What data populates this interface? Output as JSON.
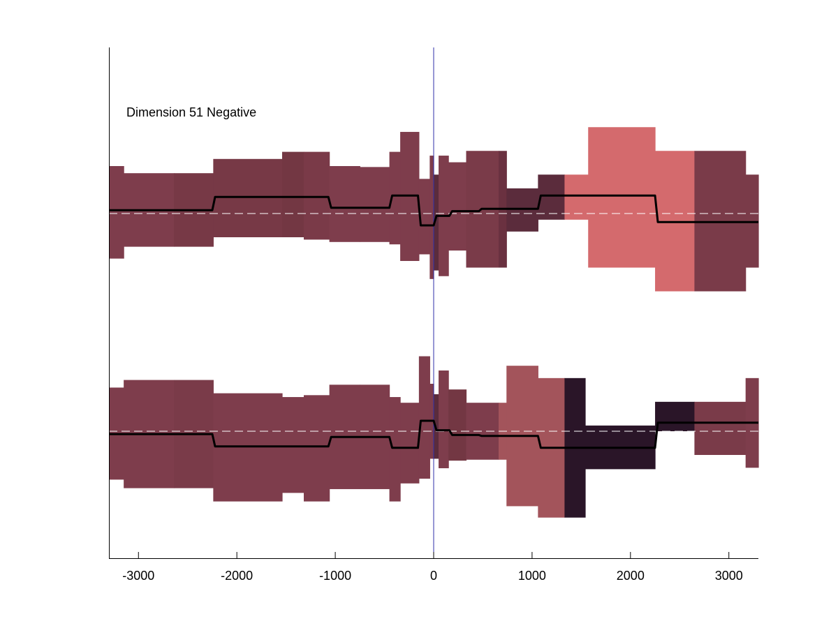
{
  "chart_data": {
    "type": "area",
    "title": "",
    "annotation": "Dimension 51 Negative",
    "xlabel": "",
    "ylabel": "",
    "xlim": [
      -3300,
      3300
    ],
    "x_ticks": [
      -3000,
      -2000,
      -1000,
      0,
      1000,
      2000,
      3000
    ],
    "x_tick_labels": [
      "-3000",
      "-2000",
      "-1000",
      "0",
      "1000",
      "2000",
      "3000"
    ],
    "grid": false,
    "legend": "none",
    "zero_line_x": 0,
    "colors": {
      "zero_line": "#2f2fa8",
      "mean_line": "#000000",
      "baseline": "#ffffff"
    },
    "panels": [
      {
        "name": "upper",
        "ylim": [
          -1.6,
          1.6
        ],
        "baseline": 0,
        "bands": [
          {
            "x0": -3300,
            "x1": -3150,
            "lo": -0.95,
            "hi": 1.0,
            "color": "#7e3d4c"
          },
          {
            "x0": -3150,
            "x1": -2640,
            "lo": -0.7,
            "hi": 0.85,
            "color": "#7e3d4c"
          },
          {
            "x0": -2640,
            "x1": -2240,
            "lo": -0.7,
            "hi": 0.85,
            "color": "#773946"
          },
          {
            "x0": -2240,
            "x1": -1540,
            "lo": -0.5,
            "hi": 1.15,
            "color": "#773946"
          },
          {
            "x0": -1540,
            "x1": -1320,
            "lo": -0.5,
            "hi": 1.3,
            "color": "#733743"
          },
          {
            "x0": -1320,
            "x1": -1060,
            "lo": -0.55,
            "hi": 1.3,
            "color": "#7a3a48"
          },
          {
            "x0": -1060,
            "x1": -750,
            "lo": -0.6,
            "hi": 1.0,
            "color": "#7e3d4c"
          },
          {
            "x0": -750,
            "x1": -450,
            "lo": -0.6,
            "hi": 0.98,
            "color": "#7e3d4c"
          },
          {
            "x0": -450,
            "x1": -340,
            "lo": -0.65,
            "hi": 1.3,
            "color": "#7e3d4c"
          },
          {
            "x0": -340,
            "x1": -150,
            "lo": -1.0,
            "hi": 1.72,
            "color": "#7e3d4c"
          },
          {
            "x0": -150,
            "x1": -40,
            "lo": -0.86,
            "hi": 0.73,
            "color": "#7e3d4c"
          },
          {
            "x0": -40,
            "x1": 0,
            "lo": -1.38,
            "hi": 1.22,
            "color": "#7e3d4c"
          },
          {
            "x0": 0,
            "x1": 50,
            "lo": -1.2,
            "hi": 0.82,
            "color": "#5b2c3c"
          },
          {
            "x0": 50,
            "x1": 150,
            "lo": -1.32,
            "hi": 1.22,
            "color": "#7e3d4c"
          },
          {
            "x0": 150,
            "x1": 330,
            "lo": -0.78,
            "hi": 1.08,
            "color": "#7e3d4c"
          },
          {
            "x0": 330,
            "x1": 660,
            "lo": -1.14,
            "hi": 1.32,
            "color": "#7a3b49"
          },
          {
            "x0": 660,
            "x1": 740,
            "lo": -1.14,
            "hi": 1.32,
            "color": "#6a3140"
          },
          {
            "x0": 740,
            "x1": 1060,
            "lo": -0.38,
            "hi": 0.53,
            "color": "#5b2c3c"
          },
          {
            "x0": 1060,
            "x1": 1330,
            "lo": -0.13,
            "hi": 0.82,
            "color": "#5b2c3c"
          },
          {
            "x0": 1330,
            "x1": 1570,
            "lo": -0.13,
            "hi": 0.82,
            "color": "#d46a6d"
          },
          {
            "x0": 1570,
            "x1": 2250,
            "lo": -1.14,
            "hi": 1.82,
            "color": "#d46a6d"
          },
          {
            "x0": 2250,
            "x1": 2650,
            "lo": -1.64,
            "hi": 1.32,
            "color": "#d46a6d"
          },
          {
            "x0": 2650,
            "x1": 3170,
            "lo": -1.64,
            "hi": 1.32,
            "color": "#7a3b49"
          },
          {
            "x0": 3170,
            "x1": 3300,
            "lo": -1.14,
            "hi": 0.82,
            "color": "#7a3b49"
          }
        ],
        "mean_steps": [
          {
            "x0": -3300,
            "x1": -2250,
            "y": 0.07
          },
          {
            "x0": -2250,
            "x1": -1070,
            "y": 0.35
          },
          {
            "x0": -1070,
            "x1": -450,
            "y": 0.12
          },
          {
            "x0": -450,
            "x1": -160,
            "y": 0.38
          },
          {
            "x0": -160,
            "x1": 0,
            "y": -0.25
          },
          {
            "x0": 0,
            "x1": 160,
            "y": -0.05
          },
          {
            "x0": 160,
            "x1": 460,
            "y": 0.05
          },
          {
            "x0": 460,
            "x1": 1060,
            "y": 0.1
          },
          {
            "x0": 1060,
            "x1": 2250,
            "y": 0.38
          },
          {
            "x0": 2250,
            "x1": 3300,
            "y": -0.18
          }
        ]
      },
      {
        "name": "lower",
        "ylim": [
          -1.6,
          1.6
        ],
        "baseline": 0,
        "bands": [
          {
            "x0": -3300,
            "x1": -3150,
            "lo": -1.02,
            "hi": 0.92,
            "color": "#7e3d4c"
          },
          {
            "x0": -3150,
            "x1": -2640,
            "lo": -1.2,
            "hi": 1.08,
            "color": "#7e3d4c"
          },
          {
            "x0": -2640,
            "x1": -2240,
            "lo": -1.2,
            "hi": 1.08,
            "color": "#7a3b49"
          },
          {
            "x0": -2240,
            "x1": -1540,
            "lo": -1.48,
            "hi": 0.8,
            "color": "#7e3d4c"
          },
          {
            "x0": -1540,
            "x1": -1320,
            "lo": -1.3,
            "hi": 0.72,
            "color": "#7e3d4c"
          },
          {
            "x0": -1320,
            "x1": -1060,
            "lo": -1.48,
            "hi": 0.76,
            "color": "#7e3d4c"
          },
          {
            "x0": -1060,
            "x1": -750,
            "lo": -1.22,
            "hi": 0.98,
            "color": "#7e3d4c"
          },
          {
            "x0": -750,
            "x1": -450,
            "lo": -1.22,
            "hi": 0.98,
            "color": "#7e3d4c"
          },
          {
            "x0": -450,
            "x1": -340,
            "lo": -1.48,
            "hi": 0.72,
            "color": "#7e3d4c"
          },
          {
            "x0": -340,
            "x1": -150,
            "lo": -1.1,
            "hi": 0.6,
            "color": "#7e3d4c"
          },
          {
            "x0": -150,
            "x1": -40,
            "lo": -1.0,
            "hi": 1.58,
            "color": "#7e3d4c"
          },
          {
            "x0": -40,
            "x1": 0,
            "lo": -0.58,
            "hi": 1.0,
            "color": "#7e3d4c"
          },
          {
            "x0": 0,
            "x1": 50,
            "lo": -0.58,
            "hi": 0.78,
            "color": "#5b2c3c"
          },
          {
            "x0": 50,
            "x1": 150,
            "lo": -0.78,
            "hi": 1.28,
            "color": "#7e3d4c"
          },
          {
            "x0": 150,
            "x1": 330,
            "lo": -0.62,
            "hi": 0.88,
            "color": "#733743"
          },
          {
            "x0": 330,
            "x1": 660,
            "lo": -0.6,
            "hi": 0.6,
            "color": "#7e3d4c"
          },
          {
            "x0": 660,
            "x1": 740,
            "lo": -0.6,
            "hi": 0.6,
            "color": "#a3545b"
          },
          {
            "x0": 740,
            "x1": 1060,
            "lo": -1.58,
            "hi": 1.38,
            "color": "#a3545b"
          },
          {
            "x0": 1060,
            "x1": 1330,
            "lo": -1.82,
            "hi": 1.12,
            "color": "#a3545b"
          },
          {
            "x0": 1330,
            "x1": 1540,
            "lo": -1.82,
            "hi": 1.12,
            "color": "#2a1528"
          },
          {
            "x0": 1540,
            "x1": 2250,
            "lo": -0.8,
            "hi": 0.12,
            "color": "#2a1528"
          },
          {
            "x0": 2250,
            "x1": 2650,
            "lo": 0.0,
            "hi": 0.62,
            "color": "#2a1528"
          },
          {
            "x0": 2650,
            "x1": 3170,
            "lo": -0.5,
            "hi": 0.62,
            "color": "#7a3b49"
          },
          {
            "x0": 3170,
            "x1": 3300,
            "lo": -0.77,
            "hi": 1.12,
            "color": "#7e3d4c"
          }
        ],
        "mean_steps": [
          {
            "x0": -3300,
            "x1": -2250,
            "y": -0.06
          },
          {
            "x0": -2250,
            "x1": -1070,
            "y": -0.32
          },
          {
            "x0": -1070,
            "x1": -450,
            "y": -0.12
          },
          {
            "x0": -450,
            "x1": -160,
            "y": -0.35
          },
          {
            "x0": -160,
            "x1": 0,
            "y": 0.22
          },
          {
            "x0": 0,
            "x1": 160,
            "y": 0.02
          },
          {
            "x0": 160,
            "x1": 460,
            "y": -0.08
          },
          {
            "x0": 460,
            "x1": 1060,
            "y": -0.1
          },
          {
            "x0": 1060,
            "x1": 2250,
            "y": -0.35
          },
          {
            "x0": 2250,
            "x1": 3300,
            "y": 0.18
          }
        ]
      }
    ]
  }
}
